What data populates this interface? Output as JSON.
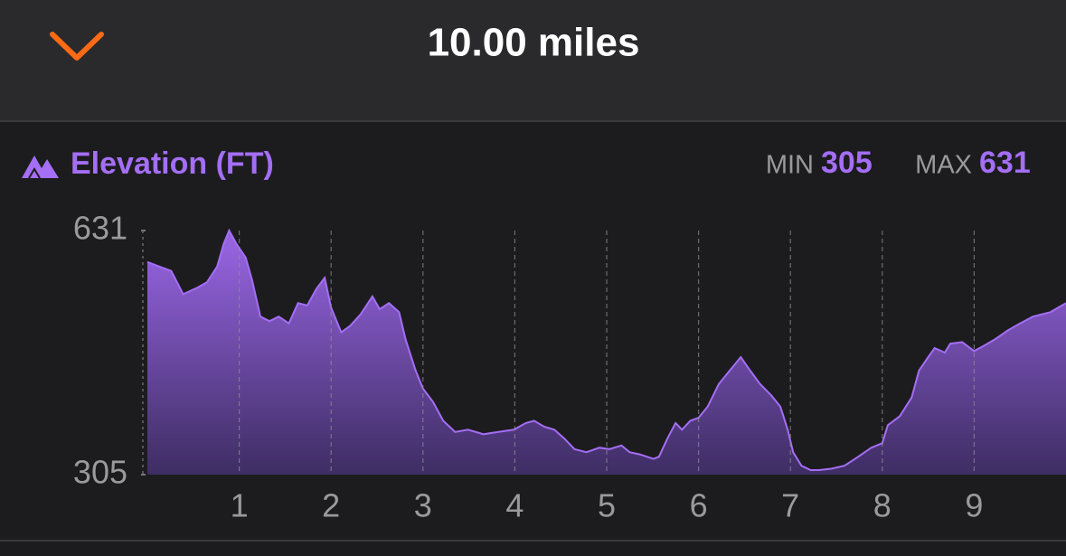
{
  "header": {
    "title": "10.00 miles"
  },
  "chart_data": {
    "type": "area",
    "title": "Elevation (FT)",
    "stats": {
      "min_label": "MIN",
      "min_value": 305,
      "max_label": "MAX",
      "max_value": 631
    },
    "x": [
      0,
      0.13,
      0.26,
      0.39,
      0.55,
      0.65,
      0.76,
      0.83,
      0.89,
      0.97,
      1.07,
      1.14,
      1.23,
      1.33,
      1.43,
      1.54,
      1.64,
      1.74,
      1.84,
      1.93,
      2.0,
      2.11,
      2.21,
      2.32,
      2.45,
      2.53,
      2.63,
      2.74,
      2.81,
      2.92,
      3.0,
      3.11,
      3.22,
      3.35,
      3.49,
      3.66,
      3.82,
      3.99,
      4.12,
      4.21,
      4.32,
      4.43,
      4.54,
      4.65,
      4.78,
      4.92,
      5.03,
      5.16,
      5.25,
      5.36,
      5.51,
      5.57,
      5.66,
      5.75,
      5.82,
      5.91,
      6.0,
      6.1,
      6.22,
      6.34,
      6.46,
      6.55,
      6.67,
      6.79,
      6.89,
      6.97,
      7.03,
      7.12,
      7.22,
      7.31,
      7.45,
      7.59,
      7.74,
      7.88,
      8.0,
      8.06,
      8.19,
      8.32,
      8.4,
      8.5,
      8.57,
      8.68,
      8.74,
      8.87,
      9.0,
      9.09,
      9.23,
      9.37,
      9.5,
      9.64,
      9.83,
      10.0
    ],
    "series": [
      {
        "name": "Elevation",
        "color": "#a46ef5",
        "values": [
          589,
          583,
          577,
          546,
          555,
          562,
          583,
          613,
          631,
          613,
          595,
          565,
          516,
          510,
          516,
          507,
          534,
          531,
          553,
          568,
          528,
          495,
          504,
          519,
          543,
          526,
          534,
          522,
          486,
          444,
          420,
          402,
          377,
          362,
          365,
          359,
          362,
          365,
          374,
          377,
          369,
          365,
          353,
          339,
          335,
          341,
          339,
          344,
          335,
          332,
          326,
          329,
          353,
          374,
          365,
          377,
          381,
          396,
          426,
          444,
          462,
          446,
          426,
          411,
          396,
          365,
          335,
          317,
          311,
          311,
          313,
          317,
          329,
          341,
          347,
          371,
          383,
          408,
          444,
          462,
          474,
          468,
          480,
          482,
          470,
          476,
          486,
          498,
          507,
          516,
          522,
          534
        ]
      }
    ],
    "xlim": [
      0,
      10
    ],
    "xticks": [
      1,
      2,
      3,
      4,
      5,
      6,
      7,
      8,
      9
    ],
    "ylim": [
      305,
      631
    ],
    "yticks": [
      305,
      631
    ],
    "grid": true
  }
}
